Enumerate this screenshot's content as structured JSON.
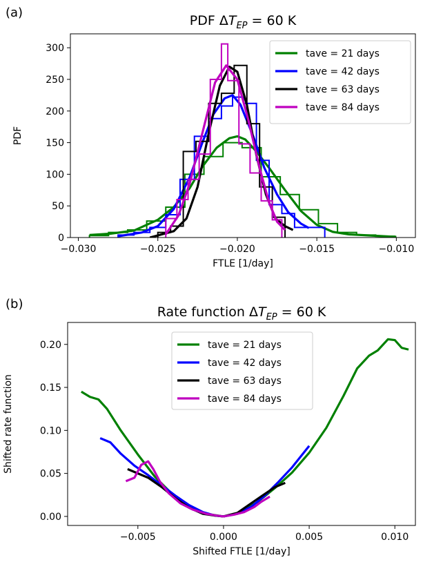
{
  "chart_data": [
    {
      "panel_label": "(a)",
      "type": "line",
      "title_prefix": "PDF ",
      "title_delta": "Δ",
      "title_symbol": "T",
      "title_subscript": "EP",
      "title_suffix": " = 60 K",
      "xlabel": "FTLE [1/day]",
      "ylabel": "PDF",
      "xlim": [
        -0.0305,
        -0.0088
      ],
      "ylim": [
        0,
        322
      ],
      "xticks": [
        -0.03,
        -0.025,
        -0.02,
        -0.015,
        -0.01
      ],
      "xtick_labels": [
        "−0.030",
        "−0.025",
        "−0.020",
        "−0.015",
        "−0.010"
      ],
      "yticks": [
        0,
        50,
        100,
        150,
        200,
        250,
        300
      ],
      "ytick_labels": [
        "0",
        "50",
        "100",
        "150",
        "200",
        "250",
        "300"
      ],
      "legend_position": "top-right",
      "grid": false,
      "series": [
        {
          "name": "tave = 21 days",
          "color": "#008000",
          "kde": [
            [
              -0.0293,
              4
            ],
            [
              -0.028,
              6
            ],
            [
              -0.0265,
              11
            ],
            [
              -0.025,
              28
            ],
            [
              -0.024,
              48
            ],
            [
              -0.023,
              78
            ],
            [
              -0.0222,
              112
            ],
            [
              -0.0213,
              142
            ],
            [
              -0.0205,
              157
            ],
            [
              -0.02,
              160
            ],
            [
              -0.0195,
              155
            ],
            [
              -0.0188,
              136
            ],
            [
              -0.018,
              110
            ],
            [
              -0.017,
              75
            ],
            [
              -0.016,
              42
            ],
            [
              -0.015,
              20
            ],
            [
              -0.014,
              9
            ],
            [
              -0.013,
              5
            ],
            [
              -0.0115,
              3
            ],
            [
              -0.01,
              1
            ]
          ],
          "histogram": {
            "edges": [
              -0.0293,
              -0.0281,
              -0.0269,
              -0.0257,
              -0.0245,
              -0.0233,
              -0.0221,
              -0.0209,
              -0.0197,
              -0.0185,
              -0.0173,
              -0.0161,
              -0.0149,
              -0.0137,
              -0.0125,
              -0.0113,
              -0.0101
            ],
            "values": [
              3,
              8,
              12,
              26,
              48,
              100,
              128,
              150,
              142,
              96,
              68,
              44,
              22,
              8,
              4,
              2
            ]
          }
        },
        {
          "name": "tave = 42 days",
          "color": "#0000ff",
          "kde": [
            [
              -0.0275,
              2
            ],
            [
              -0.026,
              8
            ],
            [
              -0.025,
              18
            ],
            [
              -0.024,
              45
            ],
            [
              -0.023,
              95
            ],
            [
              -0.0222,
              150
            ],
            [
              -0.0215,
              195
            ],
            [
              -0.0208,
              220
            ],
            [
              -0.0203,
              225
            ],
            [
              -0.0198,
              210
            ],
            [
              -0.019,
              160
            ],
            [
              -0.0183,
              110
            ],
            [
              -0.0175,
              68
            ],
            [
              -0.0168,
              40
            ],
            [
              -0.016,
              22
            ],
            [
              -0.0155,
              15
            ]
          ],
          "histogram": {
            "edges": [
              -0.0275,
              -0.0265,
              -0.0255,
              -0.0245,
              -0.0236,
              -0.0227,
              -0.0218,
              -0.021,
              -0.0203,
              -0.0196,
              -0.0188,
              -0.018,
              -0.0172,
              -0.0164,
              -0.0155,
              -0.0145
            ],
            "values": [
              4,
              8,
              16,
              36,
              92,
              160,
              188,
              208,
              222,
              212,
              122,
              52,
              38,
              16,
              16
            ]
          }
        },
        {
          "name": "tave = 63 days",
          "color": "#000000",
          "kde": [
            [
              -0.0255,
              0
            ],
            [
              -0.024,
              10
            ],
            [
              -0.0232,
              30
            ],
            [
              -0.0225,
              80
            ],
            [
              -0.0218,
              165
            ],
            [
              -0.0211,
              240
            ],
            [
              -0.0205,
              270
            ],
            [
              -0.02,
              262
            ],
            [
              -0.0194,
              210
            ],
            [
              -0.0188,
              130
            ],
            [
              -0.0182,
              68
            ],
            [
              -0.0176,
              30
            ],
            [
              -0.017,
              18
            ],
            [
              -0.0165,
              12
            ]
          ],
          "histogram": {
            "edges": [
              -0.025,
              -0.0242,
              -0.0234,
              -0.0226,
              -0.0218,
              -0.021,
              -0.0202,
              -0.0194,
              -0.0186,
              -0.0178,
              -0.017
            ],
            "values": [
              8,
              18,
              136,
              152,
              212,
              228,
              272,
              180,
              80,
              32
            ]
          }
        },
        {
          "name": "tave = 84 days",
          "color": "#bf00bf",
          "kde": [
            [
              -0.0245,
              5
            ],
            [
              -0.0237,
              35
            ],
            [
              -0.023,
              85
            ],
            [
              -0.0222,
              165
            ],
            [
              -0.0214,
              245
            ],
            [
              -0.0207,
              272
            ],
            [
              -0.02,
              250
            ],
            [
              -0.0193,
              185
            ],
            [
              -0.0186,
              110
            ],
            [
              -0.018,
              55
            ],
            [
              -0.0175,
              25
            ],
            [
              -0.017,
              12
            ]
          ],
          "histogram": {
            "edges": [
              -0.0245,
              -0.0238,
              -0.0231,
              -0.0224,
              -0.0217,
              -0.021,
              -0.0206,
              -0.0199,
              -0.0192,
              -0.0185,
              -0.0178,
              -0.0172
            ],
            "values": [
              30,
              60,
              92,
              132,
              250,
              306,
              248,
              148,
              102,
              58,
              28
            ]
          }
        }
      ]
    },
    {
      "panel_label": "(b)",
      "type": "line",
      "title_prefix": "Rate  function ",
      "title_delta": "Δ",
      "title_symbol": "T",
      "title_subscript": "EP",
      "title_suffix": " = 60 K",
      "xlabel": "Shifted FTLE [1/day]",
      "ylabel": "Shifted rate function",
      "xlim": [
        -0.0091,
        0.0112
      ],
      "ylim": [
        -0.0105,
        0.2255
      ],
      "xticks": [
        -0.005,
        0.0,
        0.005,
        0.01
      ],
      "xtick_labels": [
        "−0.005",
        "0.000",
        "0.005",
        "0.010"
      ],
      "yticks": [
        0.0,
        0.05,
        0.1,
        0.15,
        0.2
      ],
      "ytick_labels": [
        "0.00",
        "0.05",
        "0.10",
        "0.15",
        "0.20"
      ],
      "legend_position": "top-center",
      "grid": false,
      "series": [
        {
          "name": "tave = 21 days",
          "color": "#008000",
          "x": [
            -0.0083,
            -0.0078,
            -0.0073,
            -0.0068,
            -0.006,
            -0.005,
            -0.004,
            -0.003,
            -0.002,
            -0.001,
            0.0,
            0.001,
            0.002,
            0.003,
            0.004,
            0.005,
            0.006,
            0.007,
            0.0078,
            0.0085,
            0.009,
            0.0096,
            0.01,
            0.0104,
            0.0108
          ],
          "y": [
            0.145,
            0.139,
            0.136,
            0.125,
            0.1,
            0.072,
            0.046,
            0.026,
            0.011,
            0.003,
            0.0,
            0.005,
            0.017,
            0.033,
            0.051,
            0.074,
            0.103,
            0.14,
            0.172,
            0.187,
            0.193,
            0.206,
            0.205,
            0.196,
            0.194
          ]
        },
        {
          "name": "tave = 42 days",
          "color": "#0000ff",
          "x": [
            -0.0072,
            -0.0066,
            -0.006,
            -0.0052,
            -0.0044,
            -0.0036,
            -0.0028,
            -0.002,
            -0.0012,
            -0.0005,
            0.0,
            0.0008,
            0.0016,
            0.0024,
            0.0032,
            0.004,
            0.005
          ],
          "y": [
            0.091,
            0.086,
            0.073,
            0.059,
            0.048,
            0.036,
            0.024,
            0.013,
            0.005,
            0.001,
            0.0,
            0.003,
            0.011,
            0.024,
            0.04,
            0.057,
            0.082
          ]
        },
        {
          "name": "tave = 63 days",
          "color": "#000000",
          "x": [
            -0.0056,
            -0.005,
            -0.0044,
            -0.0036,
            -0.0028,
            -0.002,
            -0.0012,
            -0.0005,
            0.0,
            0.0008,
            0.0016,
            0.0024,
            0.003,
            0.0036
          ],
          "y": [
            0.055,
            0.05,
            0.045,
            0.034,
            0.021,
            0.01,
            0.003,
            0.001,
            0.0,
            0.004,
            0.015,
            0.026,
            0.034,
            0.039
          ]
        },
        {
          "name": "tave = 84 days",
          "color": "#bf00bf",
          "x": [
            -0.0057,
            -0.0052,
            -0.0048,
            -0.0044,
            -0.0041,
            -0.0037,
            -0.0032,
            -0.0025,
            -0.0018,
            -0.001,
            -0.0004,
            0.0,
            0.0006,
            0.0012,
            0.0018,
            0.0022,
            0.0027
          ],
          "y": [
            0.041,
            0.045,
            0.06,
            0.064,
            0.055,
            0.04,
            0.027,
            0.015,
            0.008,
            0.003,
            0.001,
            0.0,
            0.002,
            0.005,
            0.011,
            0.017,
            0.023
          ]
        }
      ]
    }
  ]
}
